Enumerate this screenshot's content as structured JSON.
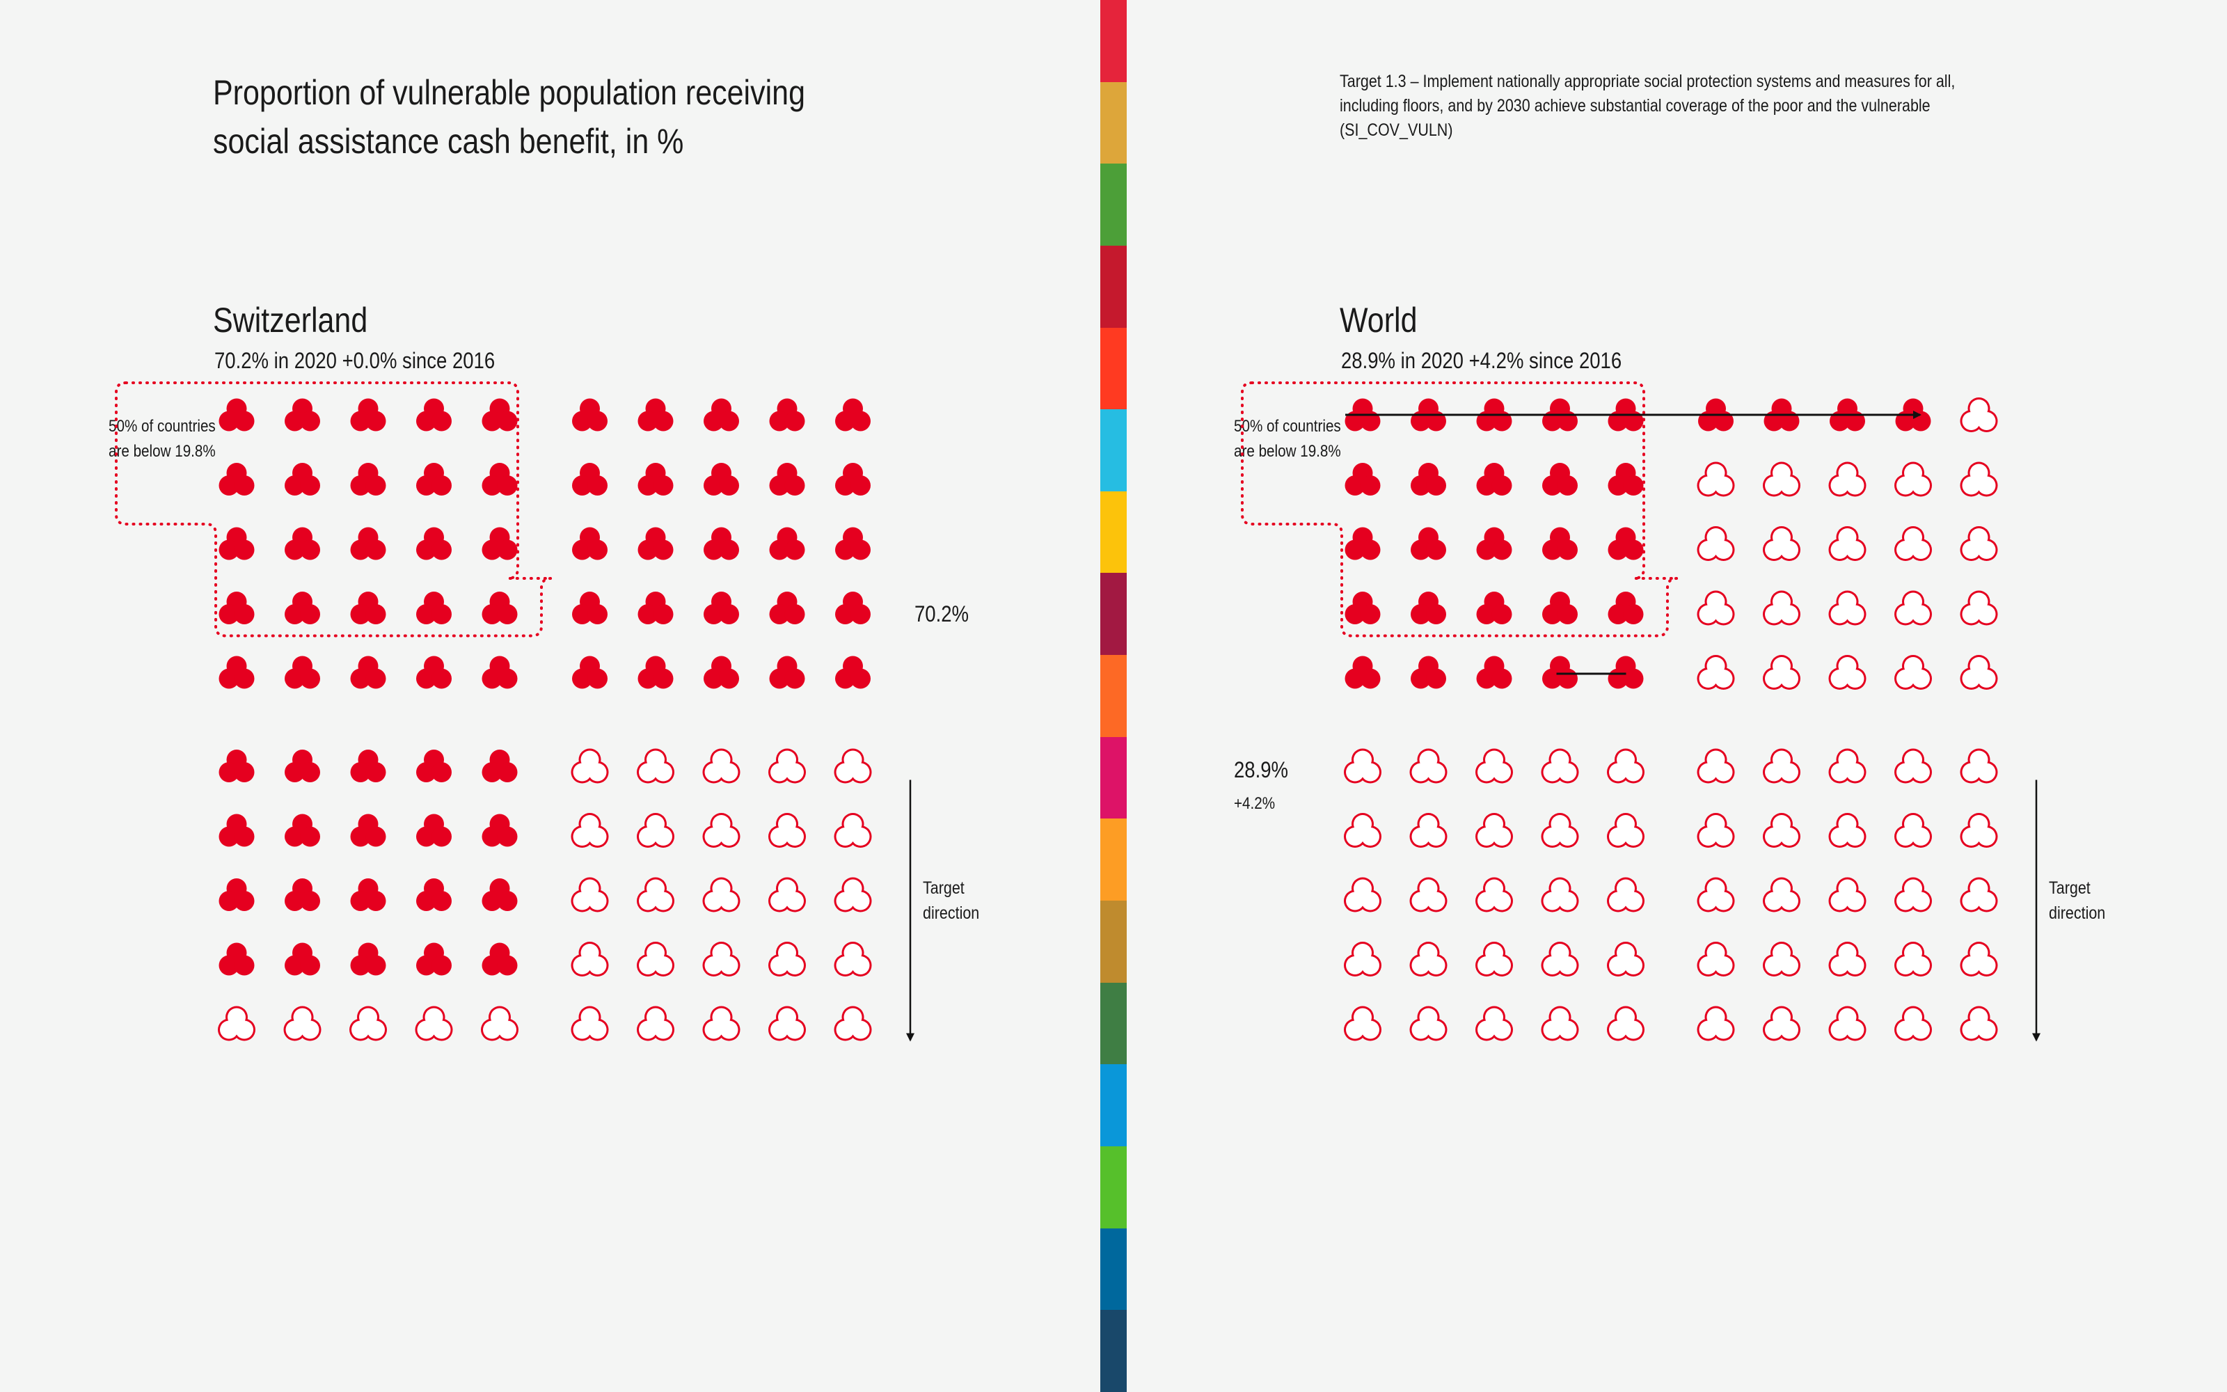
{
  "page": {
    "title": "Proportion of vulnerable population receiving social assistance cash benefit, in %",
    "target_text": "Target 1.3 – Implement nationally appropriate social protection systems and measures for all, including floors, and by 2030 achieve substantial coverage of the poor and the vulnerable (SI_COV_VULN)"
  },
  "colors": {
    "accent": "#e5001f",
    "background": "#f4f5f4",
    "sdg_strip": [
      "#e5243b",
      "#dda63a",
      "#4c9f38",
      "#c5192d",
      "#ff3a21",
      "#26bde2",
      "#fcc30b",
      "#a21942",
      "#fd6925",
      "#dd1367",
      "#fd9d24",
      "#bf8b2e",
      "#3f7e44",
      "#0a97d9",
      "#56c02b",
      "#00689d",
      "#19486a"
    ]
  },
  "chart_data": [
    {
      "type": "waffle",
      "name": "Switzerland",
      "stat_line": "70.2% in 2020 +0.0% since 2016",
      "value": 70.2,
      "year": 2020,
      "change": 0.0,
      "change_since": 2016,
      "value_label": "70.2%",
      "change_label": "",
      "median": 19.8,
      "median_note": "50% of countries are below 19.8%",
      "target_direction_label": "Target direction",
      "total_units": 100
    },
    {
      "type": "waffle",
      "name": "World",
      "stat_line": "28.9% in 2020 +4.2% since 2016",
      "value": 28.9,
      "year": 2020,
      "change": 4.2,
      "change_since": 2016,
      "value_label": "28.9%",
      "change_label": "+4.2%",
      "median": 19.8,
      "median_note": "50% of countries are below 19.8%",
      "target_direction_label": "Target direction",
      "total_units": 100
    }
  ]
}
